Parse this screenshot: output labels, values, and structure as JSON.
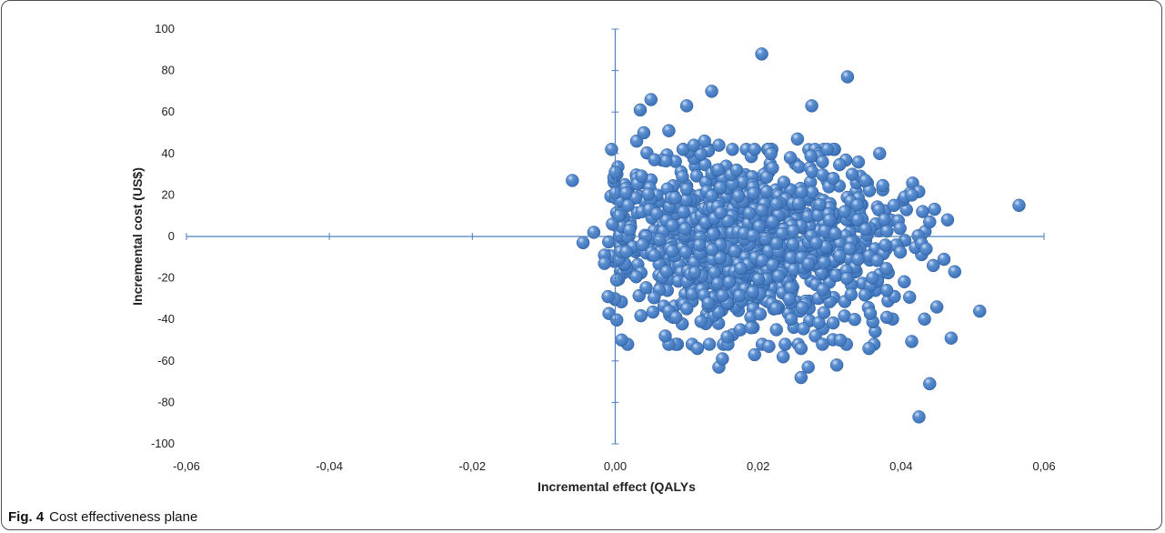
{
  "figure": {
    "label": "Fig. 4",
    "caption": "Cost effectiveness plane"
  },
  "chart_data": {
    "type": "scatter",
    "title": "",
    "xlabel": "Incremental effect (QALYs",
    "ylabel": "Incremental cost (US$)",
    "xlim": [
      -0.06,
      0.06
    ],
    "ylim": [
      -100,
      100
    ],
    "x_ticks": [
      "-0,06",
      "-0,04",
      "-0,02",
      "0,00",
      "0,02",
      "0,04",
      "0,06"
    ],
    "y_ticks": [
      "100",
      "80",
      "60",
      "40",
      "20",
      "0",
      "-20",
      "-40",
      "-60",
      "-80",
      "-100"
    ],
    "grid": false,
    "legend": "none",
    "marker_color": "#3d72b8",
    "axis_color": "#4f81bd",
    "series": [
      {
        "points": [
          [
            -0.006,
            27
          ],
          [
            -0.0045,
            -3
          ],
          [
            -0.003,
            2
          ],
          [
            -0.0015,
            -9
          ],
          [
            -0.0015,
            -13
          ],
          [
            -0.001,
            -29
          ],
          [
            0.0,
            31
          ],
          [
            0.0002,
            -21
          ],
          [
            0.0005,
            10
          ],
          [
            0.0015,
            21
          ],
          [
            0.0018,
            15
          ],
          [
            0.002,
            3
          ],
          [
            0.003,
            46
          ],
          [
            0.0035,
            61
          ],
          [
            0.004,
            50
          ],
          [
            0.005,
            66
          ],
          [
            0.0055,
            37
          ],
          [
            0.0075,
            -52
          ],
          [
            0.007,
            -48
          ],
          [
            0.0075,
            -36
          ],
          [
            0.0085,
            -39
          ],
          [
            0.0075,
            51
          ],
          [
            0.0095,
            42
          ],
          [
            0.01,
            63
          ],
          [
            0.011,
            44
          ],
          [
            0.0115,
            -54
          ],
          [
            0.012,
            -41
          ],
          [
            0.0125,
            46
          ],
          [
            0.0135,
            70
          ],
          [
            0.0145,
            44
          ],
          [
            0.0145,
            -63
          ],
          [
            0.015,
            -59
          ],
          [
            0.017,
            32
          ],
          [
            0.0175,
            -45
          ],
          [
            0.019,
            -44
          ],
          [
            0.0195,
            42
          ],
          [
            0.0195,
            -57
          ],
          [
            0.0205,
            88
          ],
          [
            0.0215,
            -53
          ],
          [
            0.022,
            33
          ],
          [
            0.0235,
            -58
          ],
          [
            0.0245,
            38
          ],
          [
            0.0255,
            47
          ],
          [
            0.026,
            -68
          ],
          [
            0.026,
            -54
          ],
          [
            0.027,
            -63
          ],
          [
            0.0275,
            63
          ],
          [
            0.028,
            -48
          ],
          [
            0.029,
            36
          ],
          [
            0.029,
            -52
          ],
          [
            0.0305,
            28
          ],
          [
            0.031,
            -62
          ],
          [
            0.0315,
            -50
          ],
          [
            0.0325,
            77
          ],
          [
            0.0335,
            -40
          ],
          [
            0.035,
            27
          ],
          [
            0.0355,
            -54
          ],
          [
            0.037,
            40
          ],
          [
            0.038,
            -39
          ],
          [
            0.039,
            15
          ],
          [
            0.0405,
            19
          ],
          [
            0.0415,
            20
          ],
          [
            0.0425,
            -87
          ],
          [
            0.043,
            12
          ],
          [
            0.0435,
            -6
          ],
          [
            0.044,
            -71
          ],
          [
            0.044,
            7
          ],
          [
            0.0445,
            -14
          ],
          [
            0.045,
            -34
          ],
          [
            0.046,
            -11
          ],
          [
            0.0465,
            8
          ],
          [
            0.047,
            -49
          ],
          [
            0.0475,
            -17
          ],
          [
            0.051,
            -36
          ],
          [
            0.0565,
            15
          ],
          [
            0.036,
            -20
          ],
          [
            0.033,
            -28
          ],
          [
            0.038,
            -26
          ]
        ]
      }
    ]
  }
}
